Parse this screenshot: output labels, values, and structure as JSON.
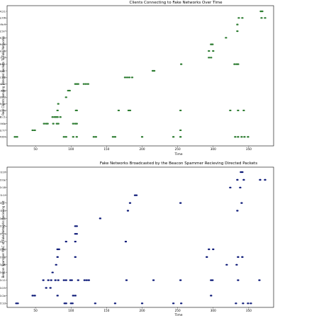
{
  "chart_data": [
    {
      "type": "scatter",
      "title": "Clients Connecting to Fake Networks Over Time",
      "xlabel": "Time",
      "ylabel": "Real Clients Sending Directed Packets To Fake Networks",
      "xlim": [
        10,
        385
      ],
      "xticks": [
        50,
        100,
        150,
        200,
        250,
        300,
        350
      ],
      "marker_color": "#2e7d32",
      "grid": false,
      "categories": [
        "de:2b:2a:3a:44:21",
        "30:f7:de:f2:9e:06",
        "8c:6e:f2:4e:f9:ff",
        "8c:6f:02:3e:32:97",
        "70:3e:ac:c9:2e:aa",
        "78:88:6d:41:19:c6",
        "3c:14:37:60:4c:f6",
        "28:ff:3c:27:10:8f",
        "40:9c:28:89:56:81",
        "70:70:0d:44:de:dc",
        "88:66:a5:94:9c:98",
        "98:e8:e3:ed:6d:52",
        "ac:e4:65:2b:43:f8",
        "ac:e9:75:4c:4b:5d",
        "48:ab:b4:46:39:5e",
        "54:4e:90:58:c0:04",
        "d8:1e:72:13:38:c1",
        "bc:84:01:40:4f:6b",
        "f4:f1:e1:49:2b:77",
        "c0:b0:12:a8:e4:64"
      ],
      "series": [
        {
          "points": [
            [
              367,
              0
            ],
            [
              369,
              0
            ]
          ]
        },
        {
          "points": [
            [
              336,
              1
            ],
            [
              341,
              1
            ],
            [
              368,
              1
            ],
            [
              373,
              1
            ]
          ]
        },
        {
          "points": [
            [
              334,
              2
            ]
          ]
        },
        {
          "points": [
            [
              334,
              3
            ]
          ]
        },
        {
          "points": [
            [
              318,
              4
            ]
          ]
        },
        {
          "points": [
            [
              297,
              5
            ],
            [
              299,
              5
            ]
          ]
        },
        {
          "points": [
            [
              294,
              6
            ],
            [
              300,
              6
            ]
          ]
        },
        {
          "points": [
            [
              294,
              7
            ],
            [
              297,
              7
            ]
          ]
        },
        {
          "points": [
            [
              255,
              8
            ],
            [
              330,
              8
            ],
            [
              333,
              8
            ],
            [
              335,
              8
            ]
          ]
        },
        {
          "points": [
            [
              215,
              9
            ],
            [
              217,
              9
            ]
          ]
        },
        {
          "points": [
            [
              176,
              10
            ],
            [
              179,
              10
            ],
            [
              182,
              10
            ],
            [
              186,
              10
            ]
          ]
        },
        {
          "points": [
            [
              106,
              11
            ],
            [
              108,
              11
            ],
            [
              110,
              11
            ],
            [
              118,
              11
            ],
            [
              121,
              11
            ],
            [
              124,
              11
            ]
          ]
        },
        {
          "points": [
            [
              96,
              12
            ],
            [
              98,
              12
            ]
          ]
        },
        {
          "points": [
            [
              93,
              13
            ]
          ]
        },
        {
          "points": [
            [
              82,
              14
            ]
          ]
        },
        {
          "points": [
            [
              81,
              15
            ],
            [
              107,
              15
            ],
            [
              108,
              15
            ],
            [
              167,
              15
            ],
            [
              181,
              15
            ],
            [
              183,
              15
            ],
            [
              254,
              15
            ],
            [
              324,
              15
            ],
            [
              335,
              15
            ],
            [
              343,
              15
            ]
          ]
        },
        {
          "points": [
            [
              74,
              16
            ],
            [
              77,
              16
            ],
            [
              79,
              16
            ],
            [
              81,
              16
            ],
            [
              85,
              16
            ]
          ]
        },
        {
          "points": [
            [
              62,
              17
            ],
            [
              65,
              17
            ],
            [
              67,
              17
            ],
            [
              75,
              17
            ],
            [
              80,
              17
            ],
            [
              82,
              17
            ],
            [
              103,
              17
            ],
            [
              106,
              17
            ],
            [
              108,
              17
            ]
          ]
        },
        {
          "points": [
            [
              46,
              18
            ],
            [
              49,
              18
            ],
            [
              254,
              18
            ]
          ]
        },
        {
          "points": [
            [
              21,
              19
            ],
            [
              24,
              19
            ],
            [
              90,
              19
            ],
            [
              93,
              19
            ],
            [
              103,
              19
            ],
            [
              108,
              19
            ],
            [
              132,
              19
            ],
            [
              135,
              19
            ],
            [
              159,
              19
            ],
            [
              162,
              19
            ],
            [
              200,
              19
            ],
            [
              244,
              19
            ],
            [
              254,
              19
            ],
            [
              331,
              19
            ],
            [
              335,
              19
            ],
            [
              340,
              19
            ],
            [
              344,
              19
            ],
            [
              349,
              19
            ]
          ]
        }
      ]
    },
    {
      "type": "scatter",
      "title": "Fake Networks Broadcasted by the Beacon Spammer Recieving Directed Packets",
      "xlabel": "Time",
      "ylabel": "Beacon Spammer MAC of Fake Networks Recieving Hit",
      "xlim": [
        10,
        385
      ],
      "xticks": [
        50,
        100,
        150,
        200,
        250,
        300,
        350
      ],
      "marker_color": "#0d1a78",
      "grid": false,
      "categories": [
        "6c:3f:23:e3:70:0f",
        "6c:3f:23:e3:70:0e",
        "6c:3f:23:e3:70:18",
        "6c:3f:23:e3:70:1f",
        "6c:3f:23:e3:70:17",
        "6c:3f:23:e3:70:2f",
        "6c:3f:23:e3:70:08",
        "6c:3f:23:e3:70:35",
        "6c:3f:23:e3:70:14",
        "6c:3f:23:e3:70:07",
        "6c:3f:23:e3:70:48",
        "6c:3f:23:e3:70:38",
        "6c:3f:23:e3:70:28",
        "6c:3f:23:e3:70:01",
        "6c:3f:23:e3:70:11",
        "6c:3f:23:e3:70:25",
        "6c:3f:23:e3:70:2e",
        "6c:3f:23:e3:70:1d"
      ],
      "series": [
        {
          "points": [
            [
              339,
              0
            ],
            [
              341,
              0
            ]
          ]
        },
        {
          "points": [
            [
              334,
              1
            ],
            [
              343,
              1
            ],
            [
              366,
              1
            ],
            [
              373,
              1
            ]
          ]
        },
        {
          "points": [
            [
              324,
              2
            ],
            [
              338,
              2
            ]
          ]
        },
        {
          "points": [
            [
              190,
              3
            ],
            [
              192,
              3
            ]
          ]
        },
        {
          "points": [
            [
              183,
              4
            ],
            [
              254,
              4
            ],
            [
              340,
              4
            ]
          ]
        },
        {
          "points": [
            [
              180,
              5
            ],
            [
              334,
              5
            ]
          ]
        },
        {
          "points": [
            [
              141,
              6
            ]
          ]
        },
        {
          "points": [
            [
              106,
              7
            ],
            [
              108,
              7
            ]
          ]
        },
        {
          "points": [
            [
              106,
              8
            ],
            [
              108,
              8
            ]
          ]
        },
        {
          "points": [
            [
              93,
              9
            ],
            [
              106,
              9
            ],
            [
              177,
              9
            ]
          ]
        },
        {
          "points": [
            [
              81,
              10
            ],
            [
              83,
              10
            ],
            [
              294,
              10
            ],
            [
              300,
              10
            ]
          ]
        },
        {
          "points": [
            [
              81,
              11
            ],
            [
              106,
              11
            ],
            [
              291,
              11
            ],
            [
              335,
              11
            ],
            [
              341,
              11
            ]
          ]
        },
        {
          "points": [
            [
              79,
              12
            ],
            [
              319,
              12
            ],
            [
              333,
              12
            ]
          ]
        },
        {
          "points": [
            [
              74,
              13
            ]
          ]
        },
        {
          "points": [
            [
              61,
              14
            ],
            [
              68,
              14
            ],
            [
              72,
              14
            ],
            [
              78,
              14
            ],
            [
              82,
              14
            ],
            [
              90,
              14
            ],
            [
              93,
              14
            ],
            [
              99,
              14
            ],
            [
              101,
              14
            ],
            [
              110,
              14
            ],
            [
              119,
              14
            ],
            [
              122,
              14
            ],
            [
              125,
              14
            ],
            [
              178,
              14
            ],
            [
              216,
              14
            ],
            [
              254,
              14
            ],
            [
              297,
              14
            ],
            [
              299,
              14
            ],
            [
              335,
              14
            ],
            [
              365,
              14
            ]
          ]
        },
        {
          "points": [
            [
              65,
              15
            ],
            [
              71,
              15
            ]
          ]
        },
        {
          "points": [
            [
              46,
              16
            ],
            [
              49,
              16
            ],
            [
              81,
              16
            ],
            [
              103,
              16
            ],
            [
              106,
              16
            ],
            [
              297,
              16
            ]
          ]
        },
        {
          "points": [
            [
              23,
              17
            ],
            [
              25,
              17
            ],
            [
              91,
              17
            ],
            [
              93,
              17
            ],
            [
              100,
              17
            ],
            [
              102,
              17
            ],
            [
              134,
              17
            ],
            [
              162,
              17
            ],
            [
              200,
              17
            ],
            [
              244,
              17
            ],
            [
              255,
              17
            ],
            [
              332,
              17
            ],
            [
              342,
              17
            ],
            [
              349,
              17
            ],
            [
              353,
              17
            ]
          ]
        }
      ]
    }
  ]
}
